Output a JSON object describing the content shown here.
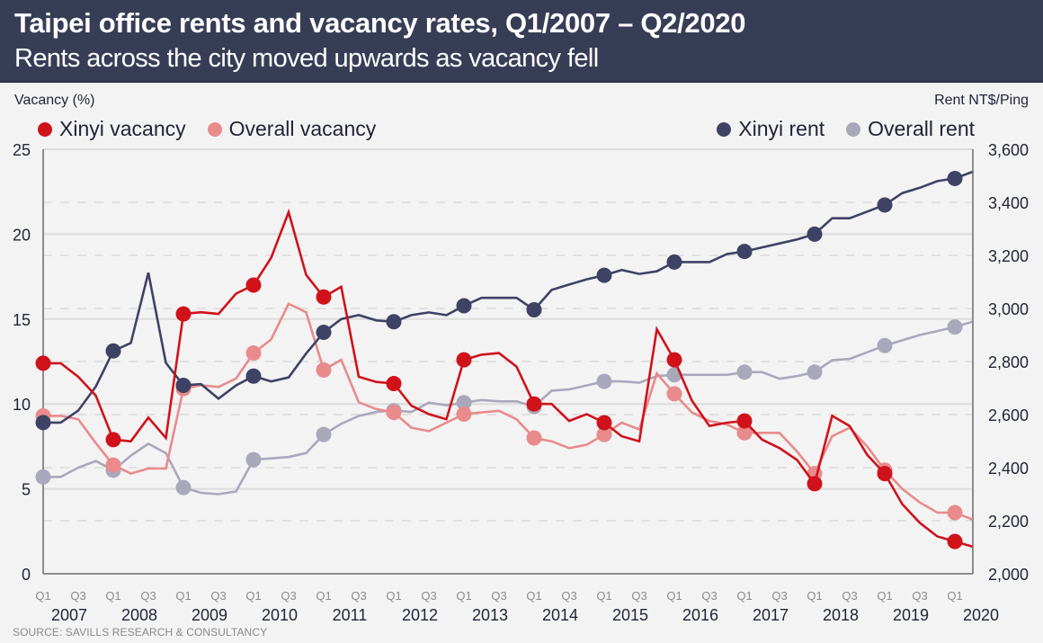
{
  "header": {
    "title": "Taipei office rents and vacancy rates, Q1/2007 – Q2/2020",
    "subtitle": "Rents across the city moved upwards as vacancy fell"
  },
  "source": "SOURCE: SAVILLS RESEARCH & CONSULTANCY",
  "colors": {
    "header_bg": "#383d56",
    "xinyi_vacancy": "#d0121b",
    "overall_vacancy": "#e98a8c",
    "xinyi_rent": "#3e4264",
    "overall_rent": "#a9a8bb"
  },
  "chart_data": {
    "type": "line",
    "title": "Taipei office rents and vacancy rates, Q1/2007 – Q2/2020",
    "subtitle": "Rents across the city moved upwards as vacancy fell",
    "ylabel_left": "Vacancy (%)",
    "ylabel_right": "Rent NT$/Ping",
    "ylim_left": [
      0,
      25
    ],
    "ylim_right": [
      2000,
      3600
    ],
    "yticks_left": [
      "0",
      "5",
      "10",
      "15",
      "20",
      "25"
    ],
    "yticks_right": [
      "2,000",
      "2,200",
      "2,400",
      "2,600",
      "2,800",
      "3,000",
      "3,200",
      "3,400",
      "3,600"
    ],
    "grid": true,
    "legend_left": [
      "Xinyi vacancy",
      "Overall vacancy"
    ],
    "legend_right": [
      "Xinyi rent",
      "Overall rent"
    ],
    "legend_placement": "top",
    "x_quarter_labels": [
      "Q1",
      "Q3"
    ],
    "x_years": [
      "2007",
      "2008",
      "2009",
      "2010",
      "2011",
      "2012",
      "2013",
      "2014",
      "2015",
      "2016",
      "2017",
      "2018",
      "2019",
      "2020"
    ],
    "x_start": "Q1 2007",
    "x_end": "Q2 2020",
    "marker_note": "Markers shown at Q1 of each year",
    "series": [
      {
        "name": "Xinyi vacancy",
        "axis": "left",
        "values": [
          12.4,
          12.4,
          11.6,
          10.5,
          7.9,
          7.8,
          9.2,
          8.0,
          15.3,
          15.4,
          15.3,
          16.5,
          17.0,
          18.6,
          21.3,
          17.6,
          16.3,
          16.9,
          11.6,
          11.3,
          11.2,
          9.9,
          9.4,
          9.1,
          12.6,
          12.9,
          13.0,
          12.2,
          10.0,
          10.0,
          9.0,
          9.4,
          8.9,
          8.1,
          7.8,
          14.4,
          12.6,
          10.2,
          8.7,
          8.9,
          9.0,
          7.9,
          7.4,
          6.7,
          5.3,
          9.3,
          8.7,
          7.0,
          5.9,
          4.1,
          3.0,
          2.2,
          1.9,
          1.6
        ]
      },
      {
        "name": "Overall vacancy",
        "axis": "left",
        "values": [
          9.3,
          9.3,
          9.1,
          7.7,
          6.4,
          5.9,
          6.2,
          6.2,
          10.9,
          11.1,
          11.0,
          11.5,
          13.0,
          13.8,
          15.9,
          15.4,
          12.0,
          12.6,
          10.1,
          9.7,
          9.5,
          8.6,
          8.4,
          8.9,
          9.4,
          9.5,
          9.6,
          9.1,
          8.0,
          7.8,
          7.4,
          7.6,
          8.2,
          8.9,
          8.5,
          11.8,
          10.6,
          9.5,
          9.0,
          8.8,
          8.3,
          8.3,
          8.3,
          7.2,
          5.9,
          8.1,
          8.6,
          7.5,
          6.1,
          5.0,
          4.2,
          3.6,
          3.6,
          3.2
        ]
      },
      {
        "name": "Xinyi rent",
        "axis": "right",
        "values": [
          2570,
          2570,
          2615,
          2705,
          2840,
          2870,
          3135,
          2795,
          2710,
          2715,
          2660,
          2710,
          2745,
          2725,
          2740,
          2830,
          2910,
          2960,
          2975,
          2955,
          2950,
          2975,
          2985,
          2975,
          3010,
          3040,
          3040,
          3040,
          2995,
          3070,
          3090,
          3110,
          3125,
          3145,
          3130,
          3140,
          3175,
          3175,
          3175,
          3205,
          3215,
          3230,
          3245,
          3260,
          3280,
          3340,
          3340,
          3365,
          3390,
          3435,
          3455,
          3480,
          3490,
          3515
        ]
      },
      {
        "name": "Overall rent",
        "axis": "right",
        "values": [
          2365,
          2365,
          2400,
          2425,
          2390,
          2445,
          2490,
          2455,
          2325,
          2305,
          2300,
          2310,
          2430,
          2435,
          2440,
          2455,
          2525,
          2565,
          2595,
          2610,
          2615,
          2610,
          2645,
          2635,
          2645,
          2655,
          2650,
          2650,
          2630,
          2690,
          2695,
          2710,
          2725,
          2725,
          2720,
          2745,
          2750,
          2750,
          2750,
          2750,
          2760,
          2760,
          2735,
          2745,
          2760,
          2805,
          2810,
          2835,
          2860,
          2880,
          2900,
          2915,
          2930,
          2950
        ]
      }
    ]
  }
}
